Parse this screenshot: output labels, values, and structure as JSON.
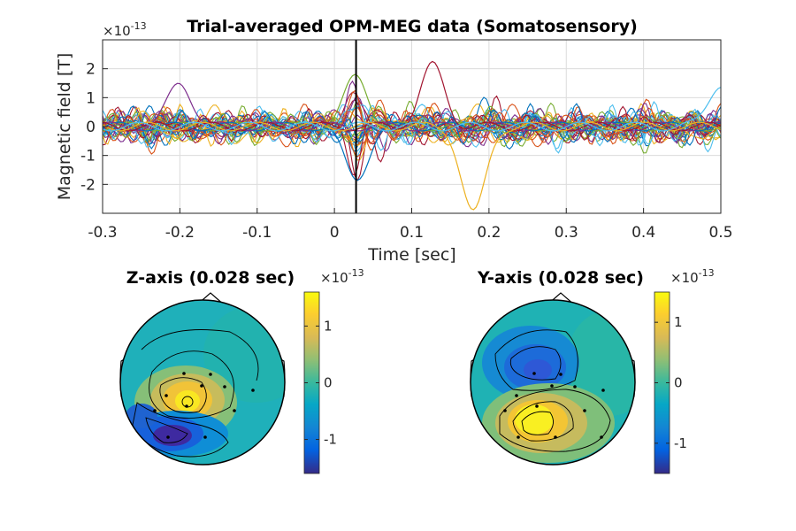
{
  "chart_data": [
    {
      "type": "line",
      "title": "Trial-averaged OPM-MEG data (Somatosensory)",
      "xlabel": "Time [sec]",
      "ylabel": "Magnetic field [T]",
      "y_exponent_label": "×10",
      "y_exponent_power": "-13",
      "xlim": [
        -0.3,
        0.5
      ],
      "ylim": [
        -3.0,
        3.0
      ],
      "x_ticks": [
        "-0.3",
        "-0.2",
        "-0.1",
        "0",
        "0.1",
        "0.2",
        "0.3",
        "0.4",
        "0.5"
      ],
      "y_ticks": [
        "-2",
        "-1",
        "0",
        "1",
        "2"
      ],
      "grid": true,
      "cursor_x": 0.028,
      "series_count": 30,
      "series_colors": [
        "#0072BD",
        "#D95319",
        "#EDB120",
        "#7E2F8E",
        "#77AC30",
        "#4DBEEE",
        "#A2142F"
      ],
      "peaks": [
        {
          "x": 0.028,
          "y": 1.7
        },
        {
          "x": 0.028,
          "y": -1.8
        },
        {
          "x": -0.2,
          "y": 1.5
        },
        {
          "x": 0.127,
          "y": 2.1
        },
        {
          "x": 0.18,
          "y": -3.0
        },
        {
          "x": 0.5,
          "y": 1.5
        }
      ]
    },
    {
      "type": "heatmap",
      "title": "Z-axis (0.028 sec)",
      "colorbar_exponent_label": "×10",
      "colorbar_exponent_power": "-13",
      "clim": [
        -1.6,
        1.6
      ],
      "colorbar_ticks": [
        "1",
        "0",
        "-1"
      ],
      "colorbar_tick_values": [
        1,
        0,
        -1
      ],
      "colormap": "parula",
      "sources": [
        {
          "x": 0.35,
          "y": 0.55,
          "value": 1.6
        },
        {
          "x": 0.1,
          "y": 0.1,
          "value": -1.5
        },
        {
          "x": 0.7,
          "y": 0.65,
          "value": 0.2
        }
      ]
    },
    {
      "type": "heatmap",
      "title": "Y-axis (0.028 sec)",
      "colorbar_exponent_label": "×10",
      "colorbar_exponent_power": "-13",
      "clim": [
        -1.5,
        1.5
      ],
      "colorbar_ticks": [
        "1",
        "0",
        "-1"
      ],
      "colorbar_tick_values": [
        1,
        0,
        -1
      ],
      "colormap": "parula",
      "sources": [
        {
          "x": 0.3,
          "y": 0.75,
          "value": 1.5
        },
        {
          "x": 0.45,
          "y": 0.3,
          "value": -1.0
        },
        {
          "x": 0.7,
          "y": 0.7,
          "value": 0.1
        }
      ]
    }
  ]
}
